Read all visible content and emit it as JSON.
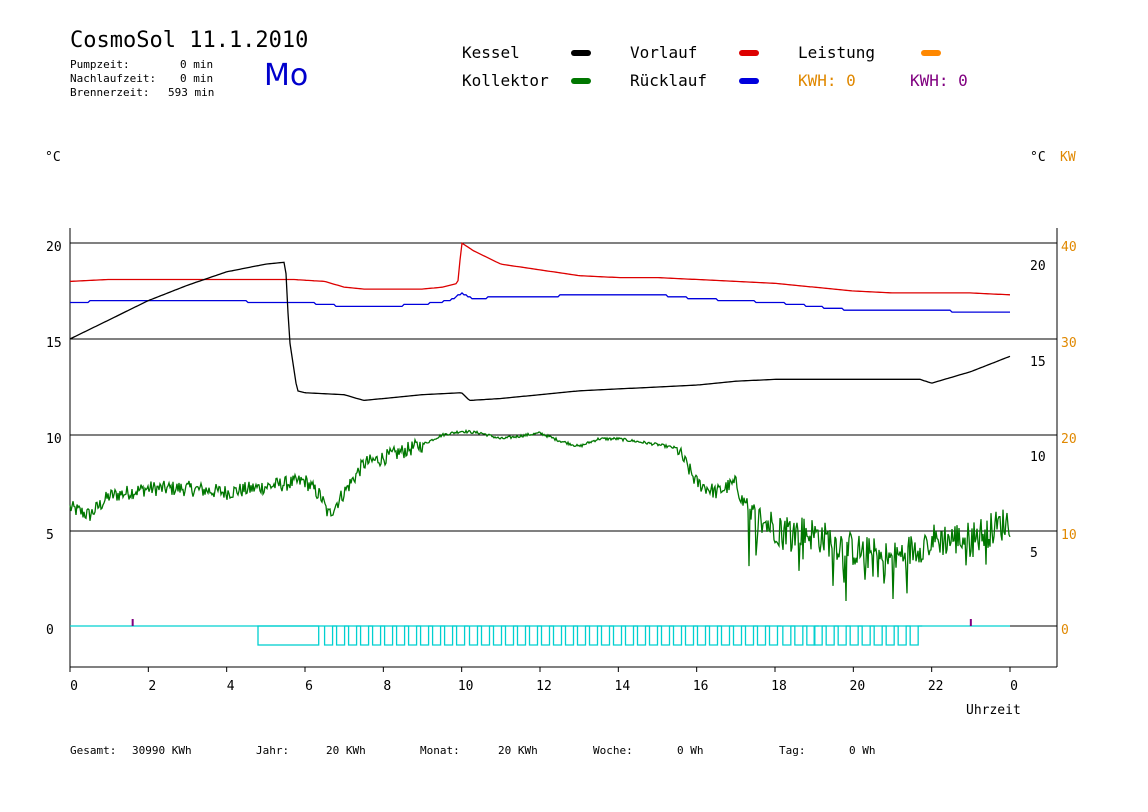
{
  "header": {
    "title": "CosmoSol 11.1.2010",
    "day": "Mo",
    "pumpzeit_label": "Pumpzeit:",
    "pumpzeit_value": "0 min",
    "nachlauf_label": "Nachlaufzeit:",
    "nachlauf_value": "0 min",
    "brenner_label": "Brennerzeit:",
    "brenner_value": "593 min"
  },
  "legend": {
    "kessel": "Kessel",
    "kollektor": "Kollektor",
    "vorlauf": "Vorlauf",
    "ruecklauf": "Rücklauf",
    "leistung": "Leistung",
    "kwh1": "KWH: 0",
    "kwh2": "KWH: 0"
  },
  "colors": {
    "kessel": "#000000",
    "kollektor": "#007700",
    "vorlauf": "#dd0000",
    "ruecklauf": "#0000dd",
    "leistung": "#ff8800",
    "kwh2": "#800080",
    "pump": "#00d0d0"
  },
  "footer": {
    "gesamt_label": "Gesamt:",
    "gesamt_value": "30990 KWh",
    "jahr_label": "Jahr:",
    "jahr_value": "20 KWh",
    "monat_label": "Monat:",
    "monat_value": "20 KWh",
    "woche_label": "Woche:",
    "woche_value": "0 Wh",
    "tag_label": "Tag:",
    "tag_value": "0 Wh"
  },
  "chart_data": {
    "type": "line",
    "xlabel": "Uhrzeit",
    "x_ticks": [
      "0",
      "2",
      "4",
      "6",
      "8",
      "10",
      "12",
      "14",
      "16",
      "18",
      "20",
      "22",
      "0"
    ],
    "xlim": [
      0,
      24
    ],
    "left_axis": {
      "unit": "°C",
      "ticks": [
        "0",
        "5",
        "10",
        "15",
        "20"
      ]
    },
    "right_axis_1": {
      "unit": "°C",
      "ticks": [
        "5",
        "10",
        "15",
        "20"
      ]
    },
    "right_axis_2": {
      "unit": "KW",
      "ticks": [
        "0",
        "10",
        "20",
        "30",
        "40"
      ]
    },
    "grid": true,
    "panels": [
      {
        "name": "upper",
        "ticks_left": [
          "15",
          "20"
        ],
        "ticks_right": [
          "15",
          "20"
        ]
      },
      {
        "name": "lower",
        "ticks_left": [
          "0",
          "5",
          "10"
        ],
        "ticks_right": [
          "5",
          "10"
        ]
      }
    ],
    "series": [
      {
        "name": "Vorlauf",
        "color": "#dd0000",
        "panel": "upper",
        "x": [
          0,
          1,
          2,
          3,
          4,
          5,
          5.7,
          6.5,
          7,
          7.5,
          9,
          9.5,
          9.9,
          10.0,
          10.3,
          11,
          12,
          13,
          14,
          15,
          16,
          17,
          18,
          19,
          20,
          21,
          22,
          23,
          24
        ],
        "y": [
          18.0,
          18.1,
          18.1,
          18.1,
          18.1,
          18.1,
          18.1,
          18.0,
          17.7,
          17.6,
          17.6,
          17.7,
          17.9,
          20.0,
          19.6,
          18.9,
          18.6,
          18.3,
          18.2,
          18.2,
          18.1,
          18.0,
          17.9,
          17.7,
          17.5,
          17.4,
          17.4,
          17.4,
          17.3
        ]
      },
      {
        "name": "Rücklauf",
        "color": "#0000dd",
        "panel": "upper",
        "x": [
          0,
          1,
          2,
          3,
          4,
          5,
          6,
          7,
          8,
          9,
          9.7,
          10.0,
          10.3,
          11,
          12,
          13,
          14,
          15,
          16,
          17,
          18,
          19,
          20,
          21,
          22,
          23,
          24
        ],
        "y": [
          16.9,
          17.0,
          17.0,
          17.0,
          17.0,
          16.9,
          16.9,
          16.7,
          16.7,
          16.8,
          17.0,
          17.4,
          17.1,
          17.2,
          17.2,
          17.3,
          17.3,
          17.3,
          17.1,
          17.0,
          16.9,
          16.7,
          16.5,
          16.5,
          16.5,
          16.4,
          16.4
        ],
        "markers": "step"
      },
      {
        "name": "Kessel",
        "color": "#000000",
        "panel": "upper",
        "x": [
          0,
          1,
          2,
          3,
          4,
          5,
          5.5,
          5.6,
          5.8,
          6,
          7,
          7.5,
          8,
          9,
          10,
          10.2,
          11,
          12,
          13,
          14,
          15,
          16,
          17,
          18,
          19,
          20,
          21,
          21.7,
          22,
          23,
          24
        ],
        "y": [
          15.0,
          16.0,
          17.0,
          17.8,
          18.5,
          18.9,
          19.0,
          15.0,
          12.3,
          12.2,
          12.1,
          11.8,
          11.9,
          12.1,
          12.2,
          11.8,
          11.9,
          12.1,
          12.3,
          12.4,
          12.5,
          12.6,
          12.8,
          12.9,
          12.9,
          12.9,
          12.9,
          12.9,
          12.7,
          13.3,
          14.1
        ]
      },
      {
        "name": "Kollektor",
        "color": "#007700",
        "panel": "lower",
        "x": [
          0,
          0.5,
          1,
          2,
          3,
          4,
          5,
          6,
          6.4,
          6.6,
          7,
          7.5,
          8,
          9,
          9.5,
          10,
          10.5,
          11,
          12,
          12.5,
          13,
          13.5,
          14,
          15,
          15.5,
          16,
          16.5,
          17,
          17.3,
          18,
          19,
          20,
          21,
          22,
          23,
          24
        ],
        "y": [
          6.2,
          5.8,
          6.8,
          7.2,
          7.2,
          7.0,
          7.3,
          7.6,
          6.8,
          5.8,
          7.0,
          8.5,
          8.8,
          9.5,
          10.0,
          10.2,
          10.1,
          9.8,
          10.1,
          9.7,
          9.4,
          9.8,
          9.8,
          9.5,
          9.3,
          7.5,
          7.0,
          7.5,
          5.8,
          5.2,
          4.8,
          4.0,
          3.5,
          4.5,
          4.6,
          5.5
        ],
        "noise": true
      },
      {
        "name": "Pumpe",
        "color": "#00d0d0",
        "panel": "lower",
        "pulses": [
          [
            4.8,
            6.35
          ],
          [
            6.5,
            10.0
          ],
          [
            10.2,
            17.9
          ],
          [
            18.2,
            18.95
          ],
          [
            19.0,
            21.5
          ]
        ],
        "baseline": 0,
        "amplitude": 0.5
      },
      {
        "name": "Leistung",
        "color": "#800080",
        "panel": "lower",
        "spikes": [
          1.6,
          23.0
        ]
      }
    ]
  }
}
